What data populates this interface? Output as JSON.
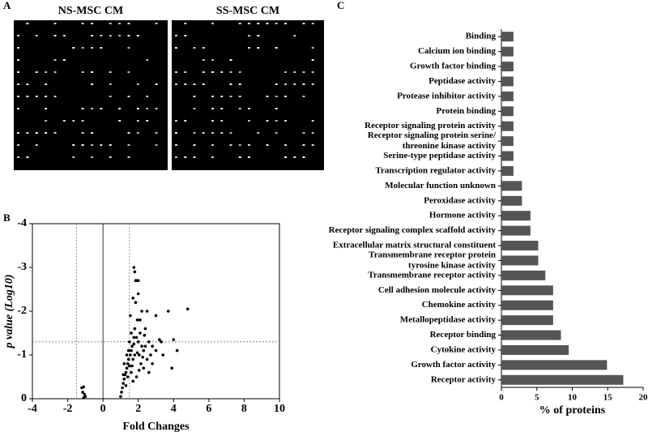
{
  "panel_a": {
    "label": "A",
    "images": [
      "NS-MSC CM",
      "SS-MSC CM"
    ]
  },
  "chart_data": [
    {
      "type": "scatter",
      "panel_label": "B",
      "xlabel": "Fold Changes",
      "ylabel": "p value (Log10)",
      "xlim": [
        -4,
        10
      ],
      "xticks": [
        -4,
        -2,
        0,
        2,
        4,
        6,
        8,
        10
      ],
      "ylim": [
        0,
        -4
      ],
      "yticks": [
        0,
        -1,
        -2,
        -3,
        -4
      ],
      "vlines": [
        {
          "x": -1.5,
          "dash": true
        },
        {
          "x": 0,
          "dash": false
        },
        {
          "x": 1.5,
          "dash": true
        }
      ],
      "hlines": [
        {
          "y": -1.3,
          "dash": true
        }
      ],
      "color": "#000000",
      "x": [
        -1.2,
        -1.1,
        -1.15,
        -1.05,
        -1.0,
        -1.1,
        1.0,
        1.05,
        1.1,
        1.15,
        1.2,
        1.25,
        1.3,
        1.35,
        1.4,
        1.45,
        1.5,
        1.55,
        1.6,
        1.6,
        1.65,
        1.7,
        1.75,
        1.8,
        1.8,
        1.85,
        1.9,
        1.75,
        1.95,
        2.0,
        2.0,
        2.05,
        2.1,
        2.15,
        2.2,
        2.2,
        2.3,
        2.4,
        2.5,
        2.6,
        2.7,
        2.8,
        3.0,
        3.2,
        3.4,
        3.0,
        3.7,
        4.0,
        4.2,
        3.9,
        4.8,
        2.5,
        1.7,
        1.85,
        2.0,
        1.3,
        1.5,
        1.6,
        1.9,
        2.3,
        2.6,
        1.4,
        1.7,
        2.1,
        1.55,
        1.9,
        2.4,
        2.8,
        3.3,
        1.8,
        1.2,
        1.35,
        1.45,
        1.65,
        1.75,
        1.95,
        2.25,
        2.35,
        2.05,
        1.15
      ],
      "values": [
        -0.25,
        -0.27,
        -0.15,
        -0.1,
        -0.05,
        -0.02,
        -0.05,
        -0.15,
        -0.25,
        -0.35,
        -0.45,
        -0.55,
        -0.6,
        -0.7,
        -0.8,
        -0.9,
        -0.75,
        -1.0,
        -1.1,
        -0.6,
        -1.2,
        -0.9,
        -1.4,
        -1.0,
        -1.6,
        -2.2,
        -2.7,
        -3.0,
        -1.8,
        -1.3,
        -2.4,
        -1.0,
        -1.5,
        -0.8,
        -1.2,
        -2.0,
        -1.1,
        -1.6,
        -0.9,
        -1.3,
        -1.0,
        -1.2,
        -1.1,
        -1.35,
        -1.0,
        -1.9,
        -2.0,
        -1.35,
        -1.1,
        -0.7,
        -2.05,
        -2.0,
        -2.3,
        -2.7,
        -2.7,
        -0.3,
        -1.3,
        -1.5,
        -0.5,
        -0.7,
        -0.6,
        -0.5,
        -0.4,
        -1.8,
        -1.9,
        -1.4,
        -1.2,
        -0.8,
        -1.3,
        -2.9,
        -0.8,
        -1.0,
        -1.1,
        -0.75,
        -1.25,
        -1.05,
        -0.95,
        -1.45,
        -0.65,
        -0.55
      ]
    },
    {
      "type": "barh",
      "panel_label": "C",
      "xlabel": "% of proteins",
      "xlim": [
        0,
        20
      ],
      "xticks": [
        0,
        5,
        10,
        15,
        20
      ],
      "color": "#555555",
      "categories": [
        [
          "Binding"
        ],
        [
          "Calcium ion binding"
        ],
        [
          "Growth factor binding"
        ],
        [
          "Peptidase activity"
        ],
        [
          "Protease inhibitor activity"
        ],
        [
          "Protein binding"
        ],
        [
          "Receptor signaling protein activity"
        ],
        [
          "Receptor signaling protein serine/",
          "threonine kinase activity"
        ],
        [
          "Serine-type peptidase activity"
        ],
        [
          "Transcription regulator activity"
        ],
        [
          "Molecular function unknown"
        ],
        [
          "Peroxidase activity"
        ],
        [
          "Hormone activity"
        ],
        [
          "Receptor signaling complex scaffold activity"
        ],
        [
          "Extracellular matrix structural constituent"
        ],
        [
          "Transmembrane receptor protein",
          "tyrosine kinase activity"
        ],
        [
          "Transmembrane receptor activity"
        ],
        [
          "Cell adhesion molecule activity"
        ],
        [
          "Chemokine activity"
        ],
        [
          "Metallopeptidase activity"
        ],
        [
          "Receptor binding"
        ],
        [
          "Cytokine activity"
        ],
        [
          "Growth factor activity"
        ],
        [
          "Receptor activity"
        ]
      ],
      "values": [
        1.7,
        1.7,
        1.7,
        1.7,
        1.7,
        1.7,
        1.7,
        1.7,
        1.7,
        1.7,
        2.9,
        2.9,
        4.1,
        4.1,
        5.2,
        5.2,
        6.2,
        7.3,
        7.3,
        7.3,
        8.4,
        9.5,
        14.9,
        17.2
      ]
    }
  ]
}
